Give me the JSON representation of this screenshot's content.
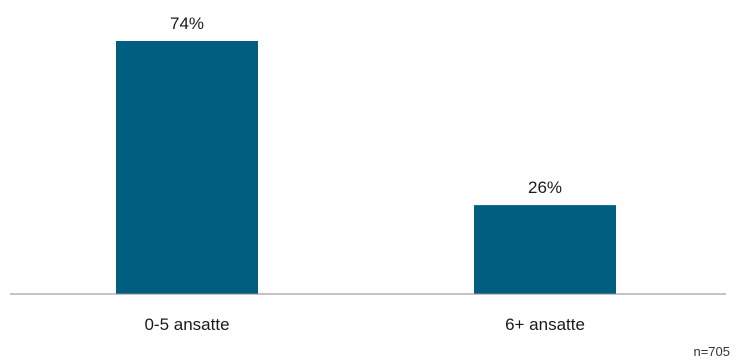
{
  "chart_data": {
    "type": "bar",
    "categories": [
      "0-5 ansatte",
      "6+ ansatte"
    ],
    "values": [
      74,
      26
    ],
    "value_labels": [
      "74%",
      "26%"
    ],
    "ylim": [
      0,
      100
    ],
    "grid": false,
    "bar_color": "#005f80",
    "axis_color": "#888888",
    "note": "n=705"
  }
}
